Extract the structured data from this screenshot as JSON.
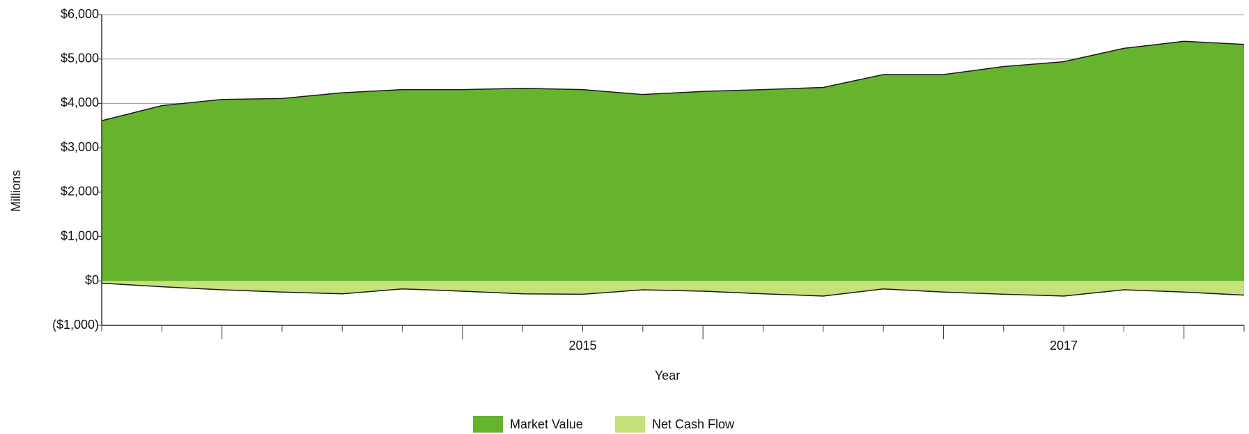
{
  "chart_data": {
    "type": "area",
    "x_label": "Year",
    "y_label": "Millions",
    "categories": [
      null,
      null,
      null,
      null,
      null,
      null,
      null,
      null,
      "2015",
      null,
      null,
      null,
      null,
      null,
      null,
      null,
      "2017",
      null,
      null,
      null
    ],
    "series": [
      {
        "name": "Market Value",
        "color": "#66b32e",
        "values": [
          3610,
          3950,
          4090,
          4110,
          4240,
          4310,
          4310,
          4340,
          4310,
          4200,
          4270,
          4310,
          4360,
          4650,
          4650,
          4830,
          4940,
          5240,
          5400,
          5330
        ]
      },
      {
        "name": "Net Cash Flow",
        "color": "#c5e17a",
        "values": [
          -50,
          -130,
          -200,
          -250,
          -290,
          -180,
          -230,
          -290,
          -300,
          -200,
          -230,
          -290,
          -340,
          -180,
          -250,
          -300,
          -340,
          -200,
          -250,
          -320
        ]
      }
    ],
    "ylim": [
      -1000,
      6000
    ],
    "yticks": [
      {
        "value": -1000,
        "label": "($1,000)"
      },
      {
        "value": 0,
        "label": "$0"
      },
      {
        "value": 1000,
        "label": "$1,000"
      },
      {
        "value": 2000,
        "label": "$2,000"
      },
      {
        "value": 3000,
        "label": "$3,000"
      },
      {
        "value": 4000,
        "label": "$4,000"
      },
      {
        "value": 5000,
        "label": "$5,000"
      },
      {
        "value": 6000,
        "label": "$6,000"
      }
    ],
    "grid": true,
    "legend": "bottom"
  }
}
